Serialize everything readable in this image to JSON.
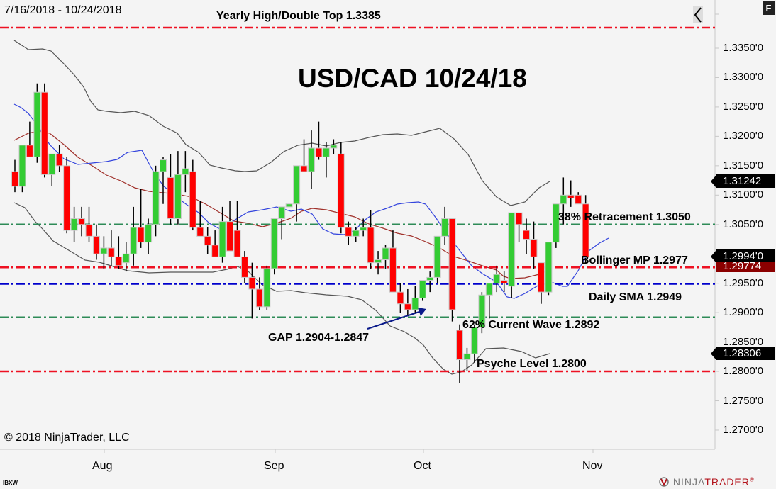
{
  "header": {
    "date_range": "7/16/2018 - 10/24/2018",
    "title": "USD/CAD 10/24/18",
    "collapse_icon": "chevron-left-icon",
    "f_button_label": "F"
  },
  "footer": {
    "copyright": "© 2018 NinjaTrader, LLC",
    "logo_ninja": "NINJA",
    "logo_trader": "TRADER",
    "logo_mark": "®",
    "bottom_tag": "IBXW"
  },
  "price_axis": {
    "labels": [
      "1.3350'0",
      "1.3300'0",
      "1.3250'0",
      "1.3200'0",
      "1.3150'0",
      "1.3100'0",
      "1.3050'0",
      "1.2950'0",
      "1.2900'0",
      "1.2850'0",
      "1.2800'0",
      "1.2750'0",
      "1.2700'0"
    ],
    "badges": {
      "upper_bb": "1.31242",
      "last_price": "1.2994'0",
      "sma_mid": "1.29774",
      "lower_bb": "1.28306"
    }
  },
  "time_axis": {
    "labels": [
      "Aug",
      "Sep",
      "Oct",
      "Nov"
    ]
  },
  "annotations": {
    "yearly_high": "Yearly High/Double Top 1.3385",
    "retracement_38": "38% Retracement 1.3050",
    "bollinger_mp": "Bollinger MP 1.2977",
    "daily_sma": "Daily SMA 1.2949",
    "current_wave_62": "62% Current Wave 1.2892",
    "gap": "GAP 1.2904-1.2847",
    "psyche_level": "Psyche Level 1.2800"
  },
  "colors": {
    "up": "#33cc33",
    "down": "#ff0000",
    "red_line": "#ee1122",
    "green_line": "#2e8b57",
    "blue_line": "#0000cc",
    "sma_blue": "#3344dd",
    "bb_mid": "#a0302a",
    "bb_band": "#555555"
  },
  "chart_data": {
    "type": "candlestick",
    "title": "USD/CAD 10/24/18",
    "subtitle": "7/16/2018 - 10/24/2018",
    "xlabel": "",
    "ylabel": "",
    "ylim": [
      1.265,
      1.34
    ],
    "x_ticks": [
      "Aug",
      "Sep",
      "Oct",
      "Nov"
    ],
    "grid": false,
    "legend": null,
    "horizontal_levels": [
      {
        "label": "Yearly High/Double Top 1.3385",
        "value": 1.3385,
        "color": "red"
      },
      {
        "label": "38% Retracement 1.3050",
        "value": 1.305,
        "color": "green"
      },
      {
        "label": "Bollinger MP 1.2977",
        "value": 1.2977,
        "color": "red"
      },
      {
        "label": "Daily SMA 1.2949",
        "value": 1.2949,
        "color": "blue"
      },
      {
        "label": "62% Current Wave 1.2892",
        "value": 1.2892,
        "color": "green"
      },
      {
        "label": "Psyche Level 1.2800",
        "value": 1.28,
        "color": "red"
      }
    ],
    "candles": [
      {
        "o": 1.314,
        "h": 1.316,
        "l": 1.3105,
        "c": 1.3115
      },
      {
        "o": 1.3115,
        "h": 1.318,
        "l": 1.3105,
        "c": 1.3185
      },
      {
        "o": 1.3185,
        "h": 1.3225,
        "l": 1.3175,
        "c": 1.3165
      },
      {
        "o": 1.3165,
        "h": 1.329,
        "l": 1.3155,
        "c": 1.3275
      },
      {
        "o": 1.3275,
        "h": 1.329,
        "l": 1.313,
        "c": 1.3135
      },
      {
        "o": 1.3135,
        "h": 1.316,
        "l": 1.3115,
        "c": 1.317
      },
      {
        "o": 1.317,
        "h": 1.3185,
        "l": 1.314,
        "c": 1.315
      },
      {
        "o": 1.315,
        "h": 1.3165,
        "l": 1.3035,
        "c": 1.304
      },
      {
        "o": 1.304,
        "h": 1.308,
        "l": 1.302,
        "c": 1.306
      },
      {
        "o": 1.306,
        "h": 1.308,
        "l": 1.303,
        "c": 1.305
      },
      {
        "o": 1.305,
        "h": 1.308,
        "l": 1.302,
        "c": 1.303
      },
      {
        "o": 1.303,
        "h": 1.305,
        "l": 1.299,
        "c": 1.3
      },
      {
        "o": 1.3,
        "h": 1.303,
        "l": 1.2975,
        "c": 1.301
      },
      {
        "o": 1.301,
        "h": 1.304,
        "l": 1.298,
        "c": 1.2995
      },
      {
        "o": 1.2995,
        "h": 1.303,
        "l": 1.2975,
        "c": 1.298
      },
      {
        "o": 1.2985,
        "h": 1.302,
        "l": 1.297,
        "c": 1.3
      },
      {
        "o": 1.3,
        "h": 1.308,
        "l": 1.298,
        "c": 1.3045
      },
      {
        "o": 1.3045,
        "h": 1.311,
        "l": 1.301,
        "c": 1.302
      },
      {
        "o": 1.302,
        "h": 1.306,
        "l": 1.3,
        "c": 1.305
      },
      {
        "o": 1.305,
        "h": 1.315,
        "l": 1.303,
        "c": 1.314
      },
      {
        "o": 1.314,
        "h": 1.3165,
        "l": 1.3085,
        "c": 1.316
      },
      {
        "o": 1.313,
        "h": 1.317,
        "l": 1.305,
        "c": 1.306
      },
      {
        "o": 1.306,
        "h": 1.3175,
        "l": 1.305,
        "c": 1.3135
      },
      {
        "o": 1.3135,
        "h": 1.3175,
        "l": 1.3105,
        "c": 1.3145
      },
      {
        "o": 1.314,
        "h": 1.316,
        "l": 1.304,
        "c": 1.3045
      },
      {
        "o": 1.3045,
        "h": 1.309,
        "l": 1.303,
        "c": 1.303
      },
      {
        "o": 1.303,
        "h": 1.3045,
        "l": 1.3,
        "c": 1.3015
      },
      {
        "o": 1.3015,
        "h": 1.304,
        "l": 1.2995,
        "c": 1.2995
      },
      {
        "o": 1.2995,
        "h": 1.308,
        "l": 1.2985,
        "c": 1.3055
      },
      {
        "o": 1.3055,
        "h": 1.309,
        "l": 1.303,
        "c": 1.3005
      },
      {
        "o": 1.304,
        "h": 1.309,
        "l": 1.301,
        "c": 1.2995
      },
      {
        "o": 1.2995,
        "h": 1.3005,
        "l": 1.295,
        "c": 1.296
      },
      {
        "o": 1.296,
        "h": 1.2985,
        "l": 1.289,
        "c": 1.294
      },
      {
        "o": 1.294,
        "h": 1.296,
        "l": 1.2905,
        "c": 1.291
      },
      {
        "o": 1.291,
        "h": 1.298,
        "l": 1.2905,
        "c": 1.2975
      },
      {
        "o": 1.2975,
        "h": 1.306,
        "l": 1.2965,
        "c": 1.306
      },
      {
        "o": 1.306,
        "h": 1.308,
        "l": 1.3025,
        "c": 1.308
      },
      {
        "o": 1.308,
        "h": 1.3085,
        "l": 1.308,
        "c": 1.3085
      },
      {
        "o": 1.3085,
        "h": 1.312,
        "l": 1.3055,
        "c": 1.315
      },
      {
        "o": 1.315,
        "h": 1.3195,
        "l": 1.314,
        "c": 1.314
      },
      {
        "o": 1.314,
        "h": 1.321,
        "l": 1.311,
        "c": 1.318
      },
      {
        "o": 1.318,
        "h": 1.3225,
        "l": 1.316,
        "c": 1.3165
      },
      {
        "o": 1.3165,
        "h": 1.319,
        "l": 1.313,
        "c": 1.318
      },
      {
        "o": 1.318,
        "h": 1.3195,
        "l": 1.317,
        "c": 1.3185
      },
      {
        "o": 1.317,
        "h": 1.319,
        "l": 1.3035,
        "c": 1.3045
      },
      {
        "o": 1.3045,
        "h": 1.3055,
        "l": 1.3015,
        "c": 1.303
      },
      {
        "o": 1.303,
        "h": 1.3045,
        "l": 1.302,
        "c": 1.304
      },
      {
        "o": 1.304,
        "h": 1.306,
        "l": 1.303,
        "c": 1.3045
      },
      {
        "o": 1.3045,
        "h": 1.3075,
        "l": 1.2975,
        "c": 1.2985
      },
      {
        "o": 1.2985,
        "h": 1.3005,
        "l": 1.2965,
        "c": 1.299
      },
      {
        "o": 1.299,
        "h": 1.3015,
        "l": 1.2975,
        "c": 1.301
      },
      {
        "o": 1.301,
        "h": 1.304,
        "l": 1.2985,
        "c": 1.2935
      },
      {
        "o": 1.2935,
        "h": 1.295,
        "l": 1.29,
        "c": 1.2915
      },
      {
        "o": 1.2915,
        "h": 1.294,
        "l": 1.2895,
        "c": 1.2905
      },
      {
        "o": 1.2905,
        "h": 1.2945,
        "l": 1.29,
        "c": 1.2925
      },
      {
        "o": 1.2925,
        "h": 1.295,
        "l": 1.292,
        "c": 1.2955
      },
      {
        "o": 1.2955,
        "h": 1.297,
        "l": 1.2935,
        "c": 1.296
      },
      {
        "o": 1.296,
        "h": 1.302,
        "l": 1.295,
        "c": 1.303
      },
      {
        "o": 1.303,
        "h": 1.308,
        "l": 1.3015,
        "c": 1.306
      },
      {
        "o": 1.306,
        "h": 1.306,
        "l": 1.2885,
        "c": 1.2905
      },
      {
        "o": 1.287,
        "h": 1.288,
        "l": 1.278,
        "c": 1.282
      },
      {
        "o": 1.282,
        "h": 1.284,
        "l": 1.28,
        "c": 1.283
      },
      {
        "o": 1.283,
        "h": 1.288,
        "l": 1.2815,
        "c": 1.2875
      },
      {
        "o": 1.2875,
        "h": 1.2935,
        "l": 1.2865,
        "c": 1.293
      },
      {
        "o": 1.293,
        "h": 1.295,
        "l": 1.289,
        "c": 1.295
      },
      {
        "o": 1.295,
        "h": 1.298,
        "l": 1.2935,
        "c": 1.2965
      },
      {
        "o": 1.2955,
        "h": 1.297,
        "l": 1.2935,
        "c": 1.295
      },
      {
        "o": 1.2945,
        "h": 1.307,
        "l": 1.2925,
        "c": 1.307
      },
      {
        "o": 1.307,
        "h": 1.307,
        "l": 1.302,
        "c": 1.305
      },
      {
        "o": 1.304,
        "h": 1.306,
        "l": 1.3,
        "c": 1.3025
      },
      {
        "o": 1.3025,
        "h": 1.3055,
        "l": 1.2975,
        "c": 1.2995
      },
      {
        "o": 1.2985,
        "h": 1.2985,
        "l": 1.2915,
        "c": 1.2935
      },
      {
        "o": 1.2935,
        "h": 1.3,
        "l": 1.293,
        "c": 1.302
      },
      {
        "o": 1.302,
        "h": 1.3085,
        "l": 1.301,
        "c": 1.3085
      },
      {
        "o": 1.3085,
        "h": 1.313,
        "l": 1.305,
        "c": 1.31
      },
      {
        "o": 1.31,
        "h": 1.3125,
        "l": 1.308,
        "c": 1.3095
      },
      {
        "o": 1.31,
        "h": 1.3105,
        "l": 1.3085,
        "c": 1.3085
      },
      {
        "o": 1.3085,
        "h": 1.31,
        "l": 1.2985,
        "c": 1.2994
      }
    ],
    "indicators": {
      "bollinger_upper_last": 1.31242,
      "bollinger_mid_last": 1.29774,
      "bollinger_lower_last": 1.28306,
      "last_price": 1.2994
    },
    "annotation_arrow": {
      "label": "GAP 1.2904-1.2847"
    }
  }
}
